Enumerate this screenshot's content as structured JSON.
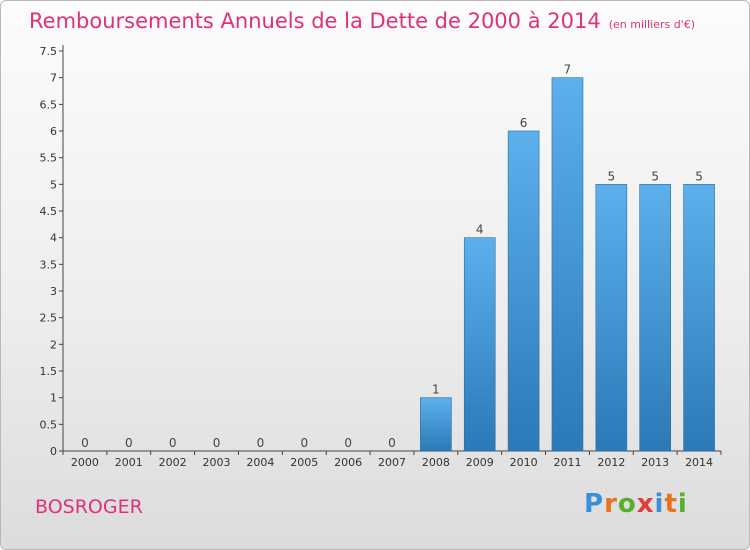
{
  "page": {
    "title": "Remboursements Annuels de la Dette de 2000 à 2014",
    "unit": "(en milliers d'€)",
    "commune": "BOSROGER",
    "logo": "Proxiti"
  },
  "colors": {
    "title": "#e0307a",
    "bar_top": "#5cb0ec",
    "bar_bottom": "#2b79b6",
    "logo": [
      "#3a8fd8",
      "#e8731c",
      "#5aae2e",
      "#e23b3b",
      "#3a8fd8",
      "#e8731c",
      "#5aae2e"
    ]
  },
  "chart_data": {
    "type": "bar",
    "categories": [
      "2000",
      "2001",
      "2002",
      "2003",
      "2004",
      "2005",
      "2006",
      "2007",
      "2008",
      "2009",
      "2010",
      "2011",
      "2012",
      "2013",
      "2014"
    ],
    "values": [
      0,
      0,
      0,
      0,
      0,
      0,
      0,
      0,
      1,
      4,
      6,
      7,
      5,
      5,
      5
    ],
    "ylim": [
      0,
      7.5
    ],
    "yticks": [
      "0",
      "0.5",
      "1",
      "1.5",
      "2",
      "2.5",
      "3",
      "3.5",
      "4",
      "4.5",
      "5",
      "5.5",
      "6",
      "6.5",
      "7",
      "7.5"
    ],
    "grid": false,
    "legend": "none"
  }
}
